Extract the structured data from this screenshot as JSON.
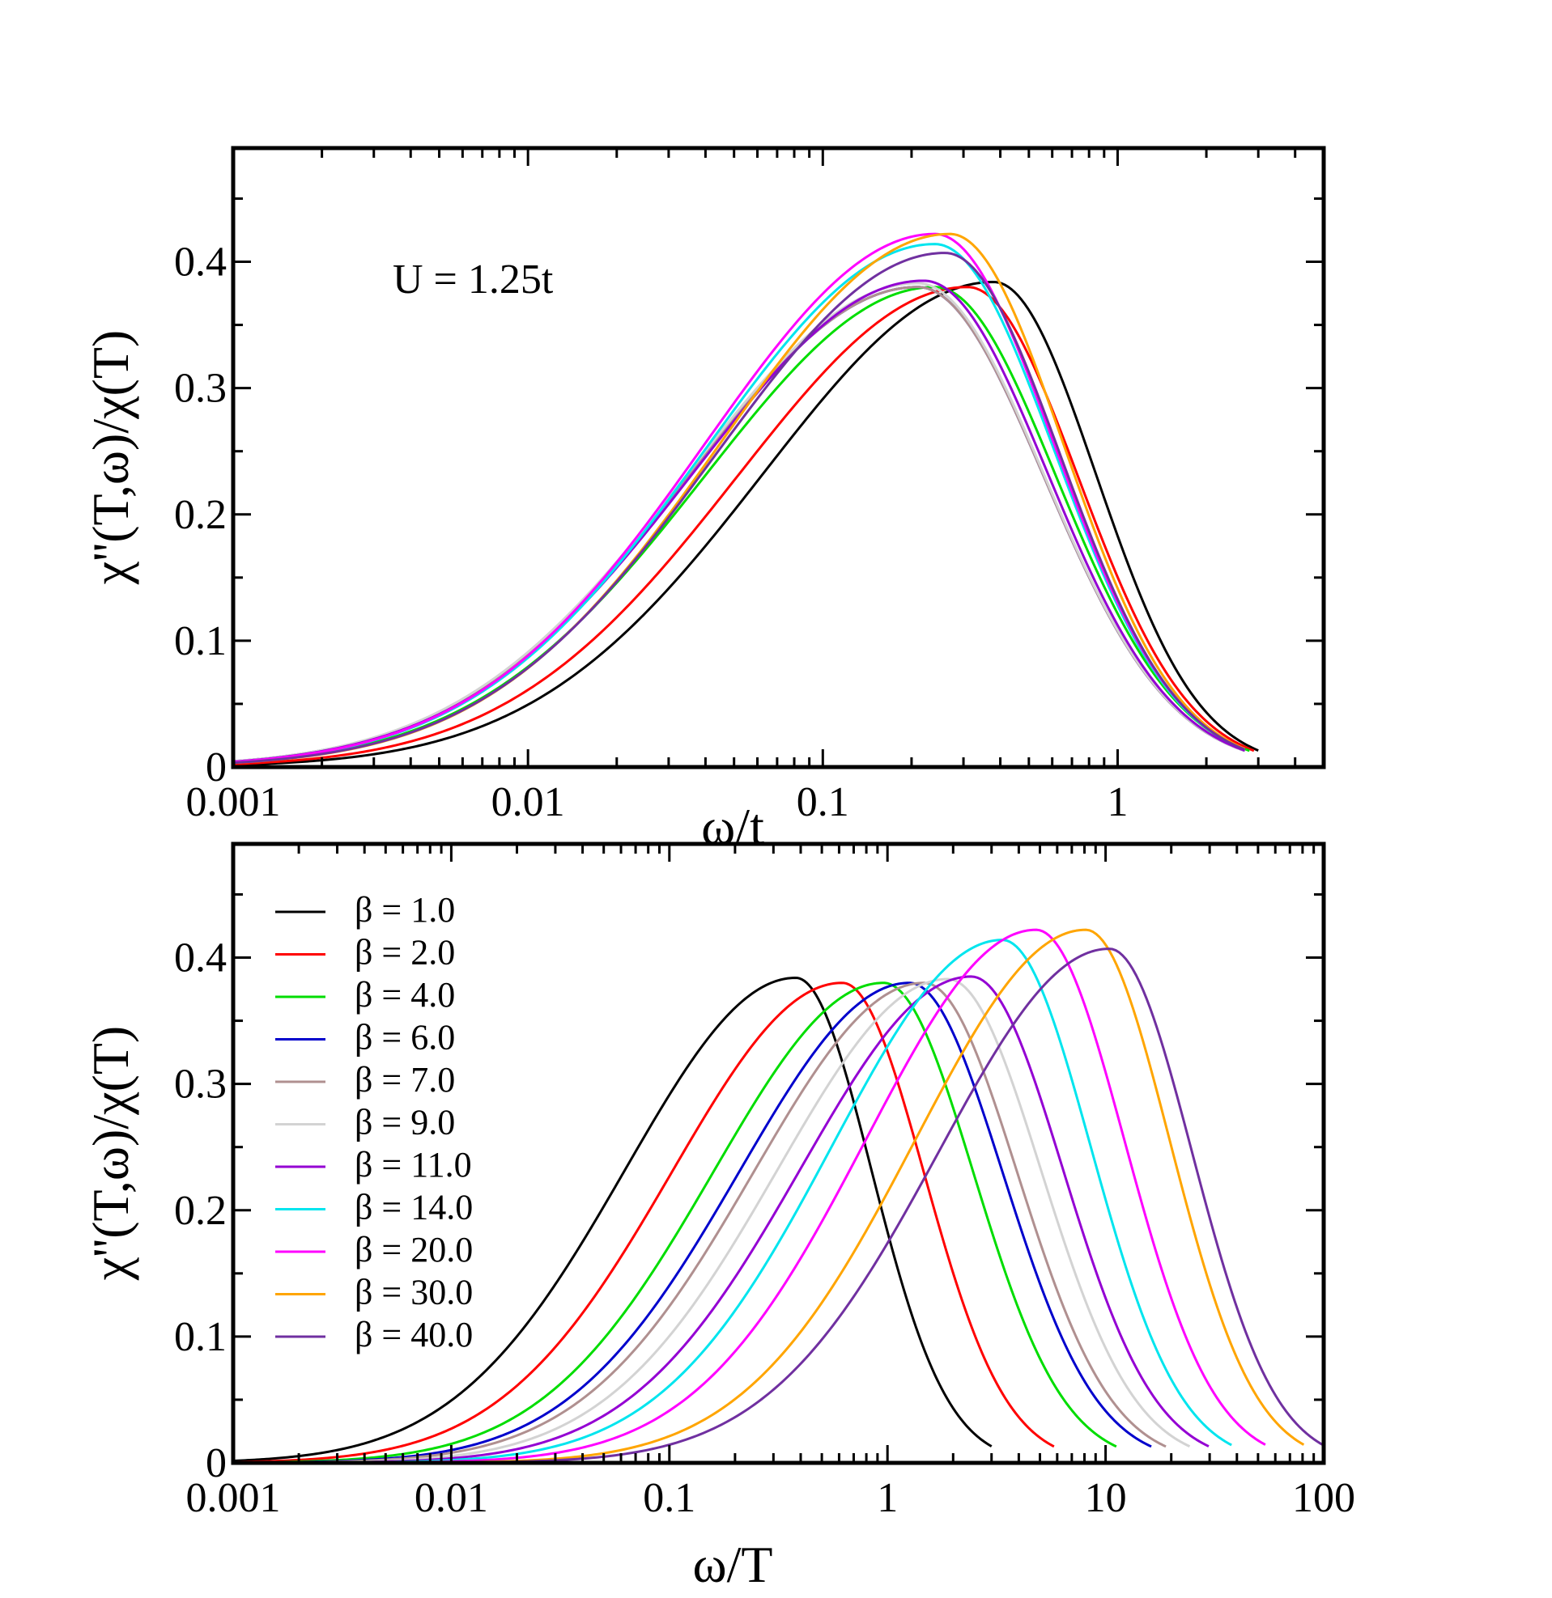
{
  "chart_data": [
    {
      "type": "line",
      "panel": "top",
      "xscale": "log",
      "xlabel": "ω/t",
      "ylabel": "χ''(T,ω)/χ(T)",
      "xlim": [
        0.001,
        5
      ],
      "ylim": [
        0,
        0.49
      ],
      "xticks": [
        {
          "v": 0.001,
          "label": "0.001"
        },
        {
          "v": 0.01,
          "label": "0.01"
        },
        {
          "v": 0.1,
          "label": "0.1"
        },
        {
          "v": 1,
          "label": "1"
        }
      ],
      "yticks": [
        {
          "v": 0,
          "label": "0"
        },
        {
          "v": 0.1,
          "label": "0.1"
        },
        {
          "v": 0.2,
          "label": "0.2"
        },
        {
          "v": 0.3,
          "label": "0.3"
        },
        {
          "v": 0.4,
          "label": "0.4"
        }
      ],
      "annotation": "U = 1.25t",
      "grid": false,
      "series": [
        {
          "name": "β = 1.0",
          "color": "#000000",
          "peak": 0.384,
          "peak_x": 0.38,
          "end_x": 3.0
        },
        {
          "name": "β = 2.0",
          "color": "#ff0000",
          "peak": 0.38,
          "peak_x": 0.31,
          "end_x": 2.9
        },
        {
          "name": "β = 4.0",
          "color": "#00dd00",
          "peak": 0.38,
          "peak_x": 0.24,
          "end_x": 2.8
        },
        {
          "name": "β = 6.0",
          "color": "#0000cc",
          "peak": 0.38,
          "peak_x": 0.21,
          "end_x": 2.7
        },
        {
          "name": "β = 7.0",
          "color": "#b09090",
          "peak": 0.38,
          "peak_x": 0.21,
          "end_x": 2.7
        },
        {
          "name": "β = 9.0",
          "color": "#d3d3d3",
          "peak": 0.383,
          "peak_x": 0.21,
          "end_x": 2.7
        },
        {
          "name": "β = 11.0",
          "color": "#9400d3",
          "peak": 0.385,
          "peak_x": 0.22,
          "end_x": 2.7
        },
        {
          "name": "β = 14.0",
          "color": "#00e5ee",
          "peak": 0.414,
          "peak_x": 0.24,
          "end_x": 2.7
        },
        {
          "name": "β = 20.0",
          "color": "#ff00ff",
          "peak": 0.422,
          "peak_x": 0.24,
          "end_x": 2.7
        },
        {
          "name": "β = 30.0",
          "color": "#ffa500",
          "peak": 0.422,
          "peak_x": 0.27,
          "end_x": 2.7
        },
        {
          "name": "β = 40.0",
          "color": "#7030a0",
          "peak": 0.407,
          "peak_x": 0.26,
          "end_x": 2.7
        }
      ]
    },
    {
      "type": "line",
      "panel": "bottom",
      "xscale": "log",
      "xlabel": "ω/T",
      "ylabel": "χ''(T,ω)/χ(T)",
      "xlim": [
        0.001,
        100
      ],
      "ylim": [
        0,
        0.49
      ],
      "xticks": [
        {
          "v": 0.001,
          "label": "0.001"
        },
        {
          "v": 0.01,
          "label": "0.01"
        },
        {
          "v": 0.1,
          "label": "0.1"
        },
        {
          "v": 1,
          "label": "1"
        },
        {
          "v": 10,
          "label": "10"
        },
        {
          "v": 100,
          "label": "100"
        }
      ],
      "yticks": [
        {
          "v": 0,
          "label": "0"
        },
        {
          "v": 0.1,
          "label": "0.1"
        },
        {
          "v": 0.2,
          "label": "0.2"
        },
        {
          "v": 0.3,
          "label": "0.3"
        },
        {
          "v": 0.4,
          "label": "0.4"
        }
      ],
      "legend": "top-left",
      "grid": false,
      "series": [
        {
          "name": "β = 1.0",
          "color": "#000000",
          "peak": 0.384,
          "peak_x": 0.38,
          "end_x": 3.0
        },
        {
          "name": "β = 2.0",
          "color": "#ff0000",
          "peak": 0.38,
          "peak_x": 0.62,
          "end_x": 5.8
        },
        {
          "name": "β = 4.0",
          "color": "#00dd00",
          "peak": 0.38,
          "peak_x": 0.96,
          "end_x": 11.2
        },
        {
          "name": "β = 6.0",
          "color": "#0000cc",
          "peak": 0.38,
          "peak_x": 1.26,
          "end_x": 16.2
        },
        {
          "name": "β = 7.0",
          "color": "#b09090",
          "peak": 0.38,
          "peak_x": 1.47,
          "end_x": 18.9
        },
        {
          "name": "β = 9.0",
          "color": "#d3d3d3",
          "peak": 0.383,
          "peak_x": 1.89,
          "end_x": 24.3
        },
        {
          "name": "β = 11.0",
          "color": "#9400d3",
          "peak": 0.385,
          "peak_x": 2.42,
          "end_x": 29.7
        },
        {
          "name": "β = 14.0",
          "color": "#00e5ee",
          "peak": 0.414,
          "peak_x": 3.36,
          "end_x": 37.8
        },
        {
          "name": "β = 20.0",
          "color": "#ff00ff",
          "peak": 0.422,
          "peak_x": 4.8,
          "end_x": 54
        },
        {
          "name": "β = 30.0",
          "color": "#ffa500",
          "peak": 0.422,
          "peak_x": 8.1,
          "end_x": 81
        },
        {
          "name": "β = 40.0",
          "color": "#7030a0",
          "peak": 0.407,
          "peak_x": 10.4,
          "end_x": 100
        }
      ]
    }
  ]
}
